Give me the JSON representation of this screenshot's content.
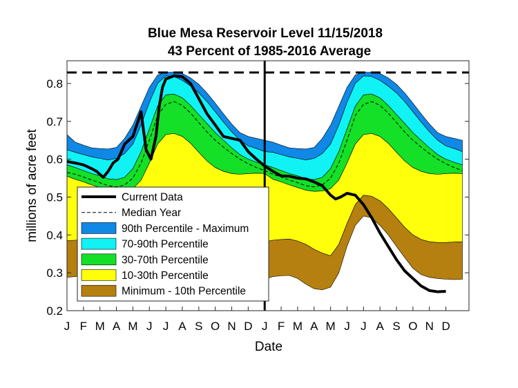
{
  "chart_data": {
    "type": "area",
    "title_line1": "Blue Mesa Reservoir Level 11/15/2018",
    "title_line2": "43 Percent of 1985-2016 Average",
    "xlabel": "Date",
    "ylabel": "millions of acre feet",
    "ylim": [
      0.2,
      0.86
    ],
    "yticks": [
      0.2,
      0.3,
      0.4,
      0.5,
      0.6,
      0.7,
      0.8
    ],
    "ytick_labels": [
      "0.2",
      "0.3",
      "0.4",
      "0.5",
      "0.6",
      "0.7",
      "0.8"
    ],
    "xlim": [
      0,
      24.4
    ],
    "xtick_labels": [
      "J",
      "F",
      "M",
      "A",
      "M",
      "J",
      "J",
      "A",
      "S",
      "O",
      "N",
      "D",
      "J",
      "F",
      "M",
      "A",
      "M",
      "J",
      "J",
      "A",
      "S",
      "O",
      "N",
      "D"
    ],
    "grid": false,
    "legend_position": "lower-left",
    "capacity_line": 0.829,
    "year_divider": 12.0,
    "colors": {
      "max_band": "#0f88e6",
      "p90_band": "#11f2f5",
      "p70_band": "#13e027",
      "p30_band": "#ffff0c",
      "p10_band": "#b5800f",
      "current": "#000000",
      "median": "#000000"
    },
    "x": [
      0,
      0.5,
      1,
      1.5,
      2,
      2.5,
      3,
      3.5,
      4,
      4.5,
      5,
      5.5,
      6,
      6.5,
      7,
      7.5,
      8,
      8.5,
      9,
      9.5,
      10,
      10.5,
      11,
      11.5,
      12
    ],
    "bands": {
      "maximum": [
        0.665,
        0.645,
        0.637,
        0.63,
        0.628,
        0.627,
        0.631,
        0.655,
        0.69,
        0.74,
        0.79,
        0.822,
        0.83,
        0.83,
        0.826,
        0.815,
        0.798,
        0.775,
        0.748,
        0.72,
        0.693,
        0.67,
        0.66,
        0.655,
        0.65
      ],
      "p90": [
        0.625,
        0.618,
        0.612,
        0.606,
        0.602,
        0.598,
        0.602,
        0.615,
        0.64,
        0.69,
        0.75,
        0.8,
        0.82,
        0.818,
        0.808,
        0.793,
        0.775,
        0.752,
        0.725,
        0.698,
        0.672,
        0.65,
        0.635,
        0.628,
        0.62
      ],
      "p70": [
        0.585,
        0.578,
        0.57,
        0.562,
        0.556,
        0.548,
        0.546,
        0.552,
        0.575,
        0.62,
        0.68,
        0.74,
        0.77,
        0.772,
        0.762,
        0.742,
        0.718,
        0.694,
        0.67,
        0.65,
        0.63,
        0.612,
        0.6,
        0.592,
        0.585
      ],
      "median": [
        0.565,
        0.56,
        0.553,
        0.545,
        0.538,
        0.53,
        0.527,
        0.532,
        0.55,
        0.59,
        0.65,
        0.715,
        0.745,
        0.752,
        0.742,
        0.722,
        0.697,
        0.672,
        0.65,
        0.632,
        0.615,
        0.6,
        0.588,
        0.578,
        0.57
      ],
      "p30": [
        0.555,
        0.547,
        0.54,
        0.532,
        0.525,
        0.518,
        0.515,
        0.516,
        0.522,
        0.545,
        0.59,
        0.64,
        0.665,
        0.668,
        0.66,
        0.642,
        0.618,
        0.595,
        0.578,
        0.568,
        0.562,
        0.56,
        0.562,
        0.563,
        0.562
      ],
      "p10": [
        0.385,
        0.386,
        0.388,
        0.389,
        0.384,
        0.375,
        0.362,
        0.352,
        0.345,
        0.375,
        0.43,
        0.48,
        0.505,
        0.502,
        0.49,
        0.47,
        0.445,
        0.42,
        0.4,
        0.388,
        0.382,
        0.38,
        0.38,
        0.381,
        0.382
      ],
      "minimum": [
        0.288,
        0.29,
        0.292,
        0.293,
        0.285,
        0.27,
        0.258,
        0.255,
        0.262,
        0.3,
        0.37,
        0.425,
        0.45,
        0.445,
        0.425,
        0.4,
        0.37,
        0.34,
        0.312,
        0.295,
        0.288,
        0.285,
        0.283,
        0.282,
        0.283
      ]
    },
    "series": [
      {
        "name": "Current Data",
        "x": [
          0,
          0.5,
          1.0,
          1.5,
          1.8,
          2.2,
          2.5,
          2.8,
          3.1,
          3.5,
          4.0,
          4.5,
          4.8,
          5.1,
          5.4,
          5.6,
          5.8,
          6.0,
          6.2,
          6.5,
          7.0,
          7.5,
          8.0,
          8.5,
          9.0,
          9.5,
          10.0,
          10.5,
          11.0,
          11.5,
          12.0,
          12.5,
          13.0,
          13.5,
          14.0,
          14.5,
          15.0,
          15.5,
          16.0,
          16.3,
          16.6,
          17.0,
          17.5,
          18.0,
          18.5,
          19.0,
          19.5,
          20.0,
          20.5,
          21.0,
          21.5,
          22.0,
          22.5,
          23.0
        ],
        "values": [
          0.594,
          0.59,
          0.585,
          0.575,
          0.568,
          0.552,
          0.568,
          0.59,
          0.6,
          0.64,
          0.66,
          0.725,
          0.625,
          0.6,
          0.66,
          0.74,
          0.79,
          0.812,
          0.815,
          0.82,
          0.818,
          0.8,
          0.76,
          0.72,
          0.69,
          0.66,
          0.655,
          0.65,
          0.62,
          0.6,
          0.582,
          0.568,
          0.556,
          0.555,
          0.55,
          0.548,
          0.54,
          0.53,
          0.505,
          0.495,
          0.5,
          0.51,
          0.505,
          0.48,
          0.445,
          0.405,
          0.37,
          0.335,
          0.305,
          0.285,
          0.265,
          0.253,
          0.25,
          0.251
        ]
      },
      {
        "name": "Median Year"
      }
    ],
    "legend": [
      {
        "label": "Current Data",
        "swatch": "line"
      },
      {
        "label": "Median Year",
        "swatch": "dashed"
      },
      {
        "label": "90th Percentile - Maximum",
        "swatch": "max_band"
      },
      {
        "label": "70-90th Percentile",
        "swatch": "p90_band"
      },
      {
        "label": "30-70th Percentile",
        "swatch": "p70_band"
      },
      {
        "label": "10-30th Percentile",
        "swatch": "p30_band"
      },
      {
        "label": "Minimum - 10th Percentile",
        "swatch": "p10_band"
      }
    ]
  }
}
